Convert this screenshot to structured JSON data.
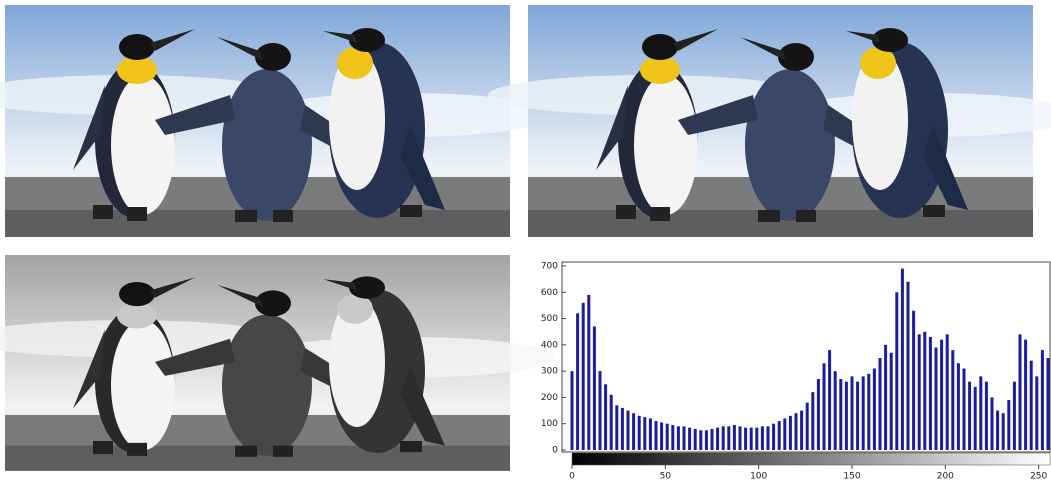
{
  "chart_data": {
    "type": "bar",
    "x": [
      0,
      3,
      6,
      9,
      12,
      15,
      18,
      21,
      24,
      27,
      30,
      33,
      36,
      39,
      42,
      45,
      48,
      51,
      54,
      57,
      60,
      63,
      66,
      69,
      72,
      75,
      78,
      81,
      84,
      87,
      90,
      93,
      96,
      99,
      102,
      105,
      108,
      111,
      114,
      117,
      120,
      123,
      126,
      129,
      132,
      135,
      138,
      141,
      144,
      147,
      150,
      153,
      156,
      159,
      162,
      165,
      168,
      171,
      174,
      177,
      180,
      183,
      186,
      189,
      192,
      195,
      198,
      201,
      204,
      207,
      210,
      213,
      216,
      219,
      222,
      225,
      228,
      231,
      234,
      237,
      240,
      243,
      246,
      249,
      252,
      255
    ],
    "values": [
      300,
      520,
      560,
      590,
      470,
      300,
      250,
      210,
      170,
      160,
      150,
      140,
      130,
      125,
      120,
      110,
      105,
      100,
      95,
      90,
      90,
      85,
      80,
      75,
      75,
      80,
      85,
      90,
      90,
      95,
      90,
      85,
      85,
      85,
      90,
      90,
      100,
      110,
      120,
      130,
      140,
      150,
      180,
      220,
      270,
      330,
      380,
      300,
      270,
      260,
      280,
      260,
      280,
      290,
      310,
      350,
      400,
      370,
      600,
      690,
      640,
      530,
      440,
      450,
      430,
      390,
      420,
      440,
      380,
      330,
      310,
      260,
      240,
      280,
      260,
      200,
      150,
      140,
      190,
      260,
      440,
      420,
      340,
      280,
      380,
      350
    ],
    "color": "#1c1c9e",
    "xlim": [
      0,
      255
    ],
    "xticks": [
      0,
      50,
      100,
      150,
      200,
      250
    ],
    "ylim": [
      0,
      700
    ],
    "yticks": [
      0,
      100,
      200,
      300,
      400,
      500,
      600,
      700
    ]
  }
}
